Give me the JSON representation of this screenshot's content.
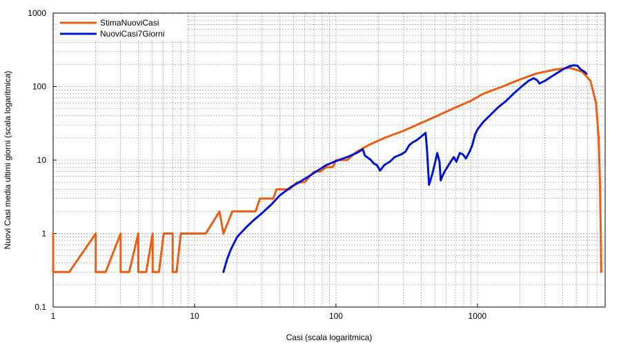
{
  "chart_data": {
    "type": "line",
    "title": "",
    "xlabel": "Casi (scala logaritmica)",
    "ylabel": "Nuovi Casi media ultimi giorni (scala logaritmica)",
    "xscale": "log",
    "yscale": "log",
    "xlim": [
      1,
      8000
    ],
    "ylim": [
      0.1,
      1000
    ],
    "grid": true,
    "legend_position": "top-left",
    "x_ticks": [
      {
        "value": 1,
        "label": "1"
      },
      {
        "value": 10,
        "label": "10"
      },
      {
        "value": 100,
        "label": "100"
      },
      {
        "value": 1000,
        "label": "1000"
      }
    ],
    "y_ticks": [
      {
        "value": 0.1,
        "label": "0.1"
      },
      {
        "value": 1,
        "label": "1"
      },
      {
        "value": 10,
        "label": "10"
      },
      {
        "value": 100,
        "label": "100"
      },
      {
        "value": 1000,
        "label": "1000"
      }
    ],
    "series": [
      {
        "name": "StimaNuoviCasi",
        "color": "#f25a0d",
        "points": [
          [
            1.0,
            1
          ],
          [
            1.0,
            0.3
          ],
          [
            1.3,
            0.3
          ],
          [
            2.0,
            1
          ],
          [
            2.0,
            0.3
          ],
          [
            2.35,
            0.3
          ],
          [
            3.0,
            1
          ],
          [
            3.0,
            0.3
          ],
          [
            3.45,
            0.3
          ],
          [
            4.0,
            1
          ],
          [
            4.0,
            0.3
          ],
          [
            4.55,
            0.3
          ],
          [
            5.05,
            1
          ],
          [
            5.05,
            0.3
          ],
          [
            5.6,
            0.3
          ],
          [
            6.05,
            1
          ],
          [
            7.0,
            1
          ],
          [
            7.0,
            0.3
          ],
          [
            7.45,
            0.3
          ],
          [
            8.0,
            1
          ],
          [
            12.0,
            1
          ],
          [
            15.0,
            2
          ],
          [
            16.0,
            1
          ],
          [
            18.5,
            2
          ],
          [
            27.0,
            2
          ],
          [
            29.0,
            3
          ],
          [
            36.0,
            3
          ],
          [
            38.0,
            4
          ],
          [
            47.0,
            4
          ],
          [
            53.0,
            5
          ],
          [
            60.0,
            5
          ],
          [
            70.0,
            7
          ],
          [
            78.0,
            7
          ],
          [
            85.0,
            8
          ],
          [
            95.0,
            8
          ],
          [
            100.0,
            10
          ],
          [
            120.0,
            10
          ],
          [
            140.0,
            13
          ],
          [
            170.0,
            16
          ],
          [
            220.0,
            20
          ],
          [
            300.0,
            25
          ],
          [
            400.0,
            32
          ],
          [
            550.0,
            42
          ],
          [
            700.0,
            52
          ],
          [
            900.0,
            64
          ],
          [
            1100.0,
            80
          ],
          [
            1500.0,
            100
          ],
          [
            2000.0,
            125
          ],
          [
            2600.0,
            150
          ],
          [
            3500.0,
            170
          ],
          [
            4500.0,
            180
          ],
          [
            5500.0,
            160
          ],
          [
            6300.0,
            120
          ],
          [
            6900.0,
            60
          ],
          [
            7200.0,
            20
          ],
          [
            7350.0,
            5
          ],
          [
            7450.0,
            1
          ],
          [
            7500.0,
            0.3
          ]
        ]
      },
      {
        "name": "NuoviCasi7Giorni",
        "color": "#0014d8",
        "points": [
          [
            16,
            0.3
          ],
          [
            17,
            0.45
          ],
          [
            18,
            0.6
          ],
          [
            20,
            0.9
          ],
          [
            23,
            1.2
          ],
          [
            26,
            1.5
          ],
          [
            30,
            1.9
          ],
          [
            35,
            2.5
          ],
          [
            40,
            3.3
          ],
          [
            48,
            4.3
          ],
          [
            55,
            5.0
          ],
          [
            65,
            6.1
          ],
          [
            75,
            7.3
          ],
          [
            85,
            8.5
          ],
          [
            100,
            9.7
          ],
          [
            120,
            11.0
          ],
          [
            140,
            12.5
          ],
          [
            155,
            14.0
          ],
          [
            160,
            11.5
          ],
          [
            175,
            10.2
          ],
          [
            185,
            9.0
          ],
          [
            195,
            8.5
          ],
          [
            205,
            7.2
          ],
          [
            220,
            8.6
          ],
          [
            240,
            9.5
          ],
          [
            260,
            11.0
          ],
          [
            290,
            12.0
          ],
          [
            310,
            13.0
          ],
          [
            330,
            16.0
          ],
          [
            350,
            17.5
          ],
          [
            370,
            18.5
          ],
          [
            390,
            20.0
          ],
          [
            420,
            22.5
          ],
          [
            430,
            23.5
          ],
          [
            440,
            14.0
          ],
          [
            455,
            4.6
          ],
          [
            480,
            6.5
          ],
          [
            500,
            9.0
          ],
          [
            520,
            12.5
          ],
          [
            540,
            9.5
          ],
          [
            550,
            5.3
          ],
          [
            575,
            6.5
          ],
          [
            600,
            7.5
          ],
          [
            640,
            9.2
          ],
          [
            680,
            11.0
          ],
          [
            710,
            9.5
          ],
          [
            750,
            12.5
          ],
          [
            790,
            12.0
          ],
          [
            830,
            10.5
          ],
          [
            880,
            13.0
          ],
          [
            920,
            16.0
          ],
          [
            960,
            22.0
          ],
          [
            1000,
            26.0
          ],
          [
            1100,
            33.0
          ],
          [
            1250,
            42.0
          ],
          [
            1400,
            52.0
          ],
          [
            1600,
            64.0
          ],
          [
            1800,
            80.0
          ],
          [
            2050,
            100.0
          ],
          [
            2300,
            120.0
          ],
          [
            2500,
            130.0
          ],
          [
            2650,
            122.0
          ],
          [
            2750,
            110.0
          ],
          [
            3000,
            120.0
          ],
          [
            3300,
            135.0
          ],
          [
            3700,
            155.0
          ],
          [
            4100,
            175.0
          ],
          [
            4500,
            190.0
          ],
          [
            4800,
            195.0
          ],
          [
            5100,
            192.0
          ],
          [
            5400,
            170.0
          ],
          [
            5700,
            160.0
          ],
          [
            5900,
            150.0
          ]
        ]
      }
    ]
  }
}
